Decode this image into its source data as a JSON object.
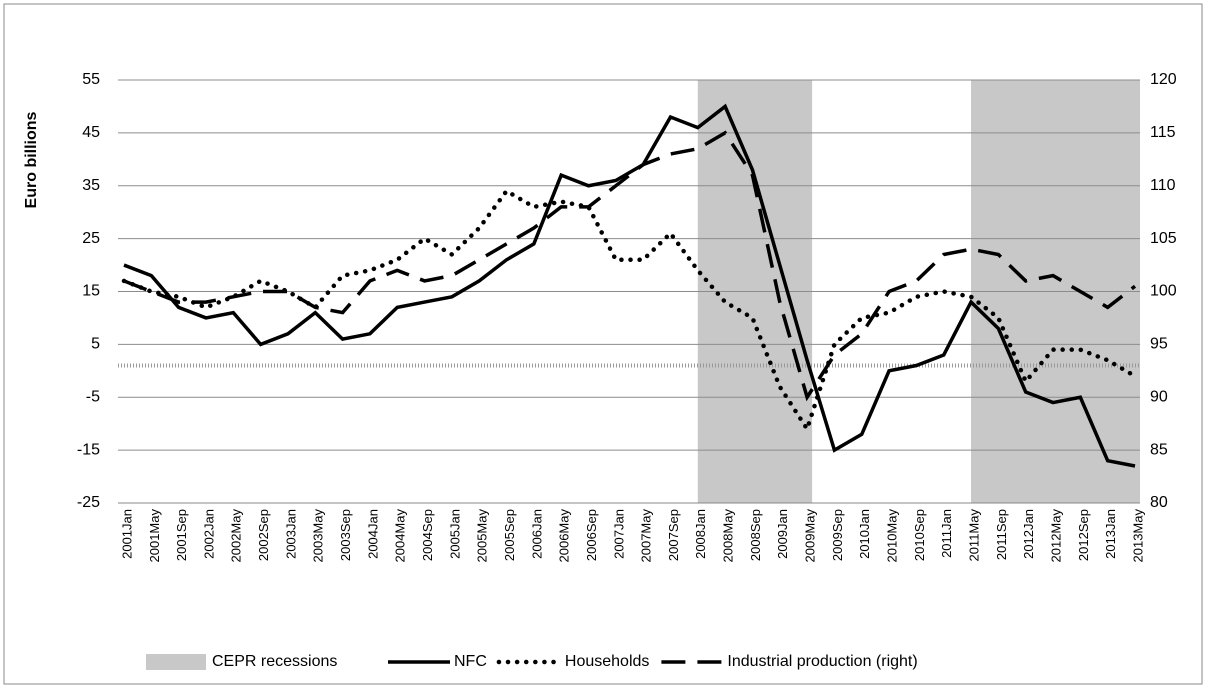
{
  "chart_data": {
    "type": "line",
    "y_label": "Euro billions",
    "categories": [
      "2001Jan",
      "2001May",
      "2001Sep",
      "2002Jan",
      "2002May",
      "2002Sep",
      "2003Jan",
      "2003May",
      "2003Sep",
      "2004Jan",
      "2004May",
      "2004Sep",
      "2005Jan",
      "2005May",
      "2005Sep",
      "2006Jan",
      "2006May",
      "2006Sep",
      "2007Jan",
      "2007May",
      "2007Sep",
      "2008Jan",
      "2008May",
      "2008Sep",
      "2009Jan",
      "2009May",
      "2009Sep",
      "2010Jan",
      "2010May",
      "2010Sep",
      "2011Jan",
      "2011May",
      "2011Sep",
      "2012Jan",
      "2012May",
      "2012Sep",
      "2013Jan",
      "2013May"
    ],
    "recessions": {
      "name": "CEPR recessions",
      "color": "#c8c8c8",
      "spans": [
        [
          "2008Jan",
          "2009May"
        ],
        [
          "2011May",
          "2013May"
        ]
      ]
    },
    "reference_line": 1,
    "series": [
      {
        "name": "NFC",
        "color": "#000000",
        "style": "solid",
        "axis": "y",
        "values": [
          20,
          18,
          12,
          10,
          11,
          5,
          7,
          11,
          6,
          7,
          12,
          13,
          14,
          17,
          21,
          24,
          37,
          35,
          36,
          39,
          48,
          46,
          50,
          38,
          20,
          2,
          -15,
          -12,
          0,
          1,
          3,
          13,
          8,
          -4,
          -6,
          -5,
          -17,
          -18
        ]
      },
      {
        "name": "Households",
        "color": "#000000",
        "style": "dotted",
        "axis": "y",
        "values": [
          17,
          15,
          14,
          12,
          14,
          17,
          15,
          12,
          18,
          19,
          21,
          25,
          22,
          27,
          34,
          31,
          32,
          31,
          21,
          21,
          26,
          19,
          13,
          10,
          -3,
          -11,
          5,
          10,
          11,
          14,
          15,
          14,
          10,
          -2,
          4,
          4,
          2,
          -1
        ]
      },
      {
        "name": "Industrial production (right)",
        "color": "#000000",
        "style": "dashed",
        "axis": "y2",
        "values": [
          101,
          100,
          99,
          99,
          99.5,
          100,
          100,
          98.5,
          98,
          101,
          102,
          101,
          101.5,
          103,
          104.5,
          106,
          108,
          108,
          110,
          112,
          113,
          113.5,
          115,
          111,
          99,
          90,
          94,
          96,
          100,
          101,
          103.5,
          104,
          103.5,
          101,
          101.5,
          100,
          98.5,
          100.5
        ]
      }
    ],
    "ylim": [
      -25,
      55
    ],
    "yticks": [
      55,
      45,
      35,
      25,
      15,
      5,
      -5,
      -15,
      -25
    ],
    "y2lim": [
      80,
      120
    ],
    "y2ticks": [
      120,
      115,
      110,
      105,
      100,
      95,
      90,
      85,
      80
    ],
    "grid": true
  }
}
